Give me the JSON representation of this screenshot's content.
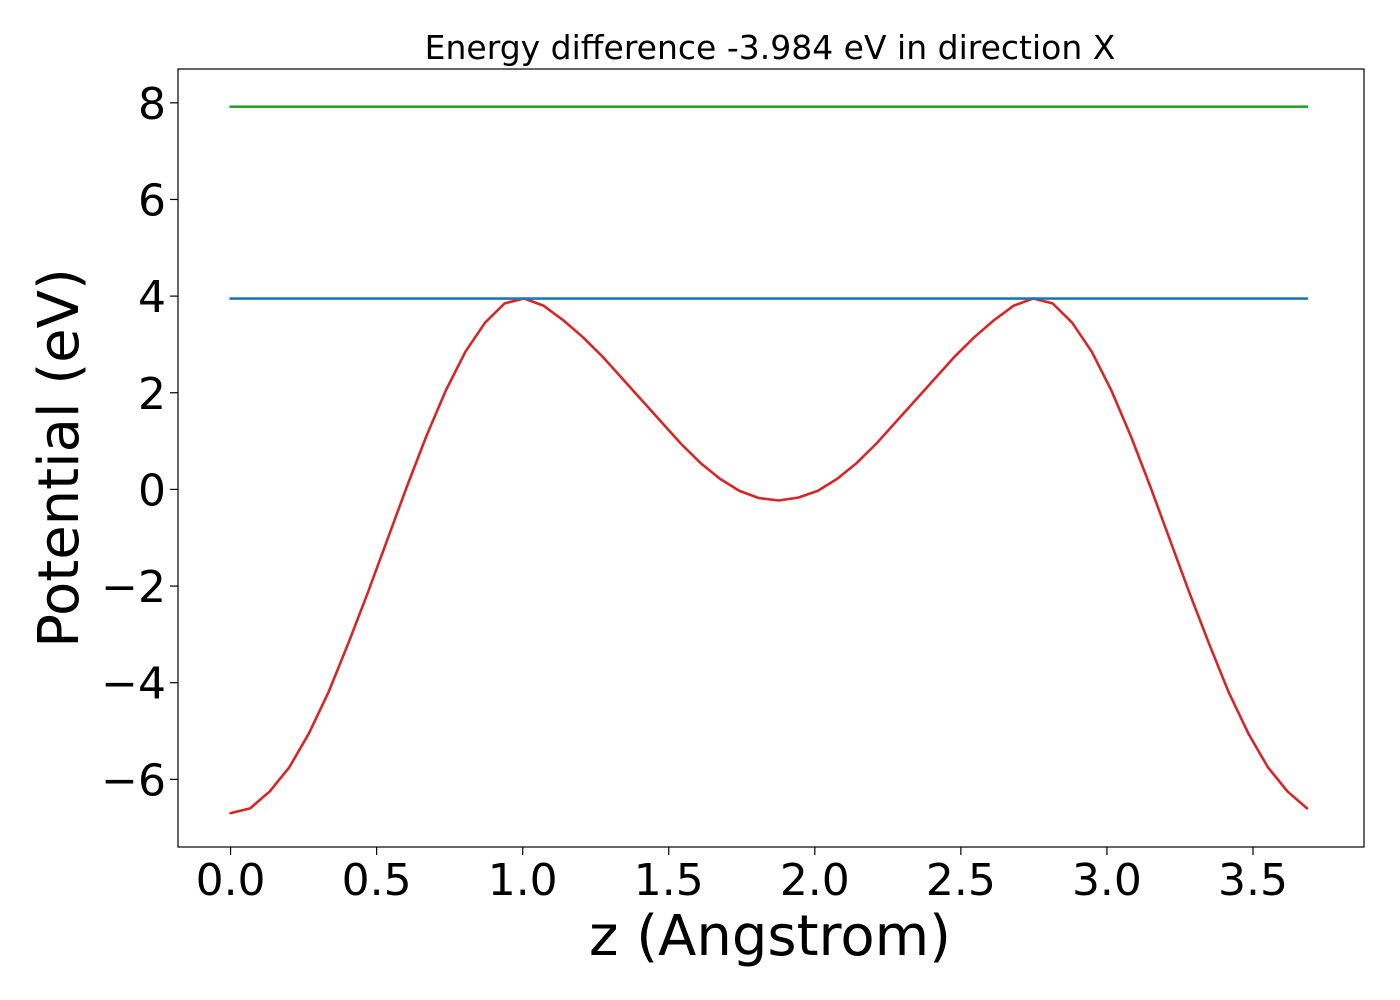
{
  "chart_data": {
    "type": "line",
    "title": "Energy difference -3.984 eV in direction X",
    "xlabel": "z (Angstrom)",
    "ylabel": "Potential (eV)",
    "xlim": [
      -0.18,
      3.88
    ],
    "ylim": [
      -7.4,
      8.7
    ],
    "grid": false,
    "x_ticks": [
      {
        "value": 0.0,
        "label": "0.0"
      },
      {
        "value": 0.5,
        "label": "0.5"
      },
      {
        "value": 1.0,
        "label": "1.0"
      },
      {
        "value": 1.5,
        "label": "1.5"
      },
      {
        "value": 2.0,
        "label": "2.0"
      },
      {
        "value": 2.5,
        "label": "2.5"
      },
      {
        "value": 3.0,
        "label": "3.0"
      },
      {
        "value": 3.5,
        "label": "3.5"
      }
    ],
    "y_ticks": [
      {
        "value": 8,
        "label": "8"
      },
      {
        "value": 6,
        "label": "6"
      },
      {
        "value": 4,
        "label": "4"
      },
      {
        "value": 2,
        "label": "2"
      },
      {
        "value": 0,
        "label": "0"
      },
      {
        "value": -2,
        "label": "−2"
      },
      {
        "value": -4,
        "label": "−4"
      },
      {
        "value": -6,
        "label": "−6"
      }
    ],
    "series": [
      {
        "color": "#d62728",
        "x": [
          0.0,
          0.067,
          0.134,
          0.201,
          0.268,
          0.335,
          0.402,
          0.469,
          0.536,
          0.603,
          0.67,
          0.737,
          0.804,
          0.871,
          0.938,
          1.005,
          1.072,
          1.139,
          1.206,
          1.273,
          1.34,
          1.407,
          1.474,
          1.541,
          1.608,
          1.675,
          1.742,
          1.809,
          1.876,
          1.943,
          2.01,
          2.077,
          2.144,
          2.211,
          2.278,
          2.345,
          2.412,
          2.479,
          2.546,
          2.613,
          2.68,
          2.747,
          2.814,
          2.881,
          2.948,
          3.015,
          3.082,
          3.149,
          3.216,
          3.283,
          3.35,
          3.417,
          3.484,
          3.551,
          3.618,
          3.685
        ],
        "values": [
          -6.7,
          -6.6,
          -6.25,
          -5.75,
          -5.05,
          -4.2,
          -3.2,
          -2.15,
          -1.05,
          0.05,
          1.1,
          2.05,
          2.85,
          3.45,
          3.85,
          3.95,
          3.8,
          3.5,
          3.15,
          2.75,
          2.3,
          1.85,
          1.4,
          0.95,
          0.55,
          0.22,
          -0.03,
          -0.18,
          -0.23,
          -0.17,
          -0.03,
          0.22,
          0.55,
          0.95,
          1.4,
          1.85,
          2.3,
          2.75,
          3.15,
          3.5,
          3.8,
          3.95,
          3.85,
          3.45,
          2.85,
          2.05,
          1.1,
          0.05,
          -1.05,
          -2.15,
          -3.2,
          -4.2,
          -5.05,
          -5.75,
          -6.25,
          -6.6
        ]
      },
      {
        "color": "#1f77b4",
        "x": [
          0.0,
          3.685
        ],
        "values": [
          3.95,
          3.95
        ]
      },
      {
        "color": "#2ca02c",
        "x": [
          0.0,
          3.685
        ],
        "values": [
          7.92,
          7.92
        ]
      }
    ]
  }
}
